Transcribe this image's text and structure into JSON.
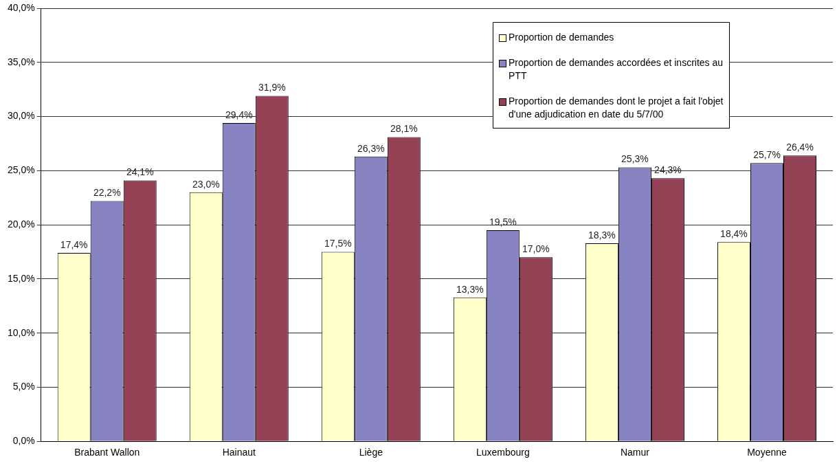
{
  "chart_data": {
    "type": "bar",
    "categories": [
      "Brabant Wallon",
      "Hainaut",
      "Liège",
      "Luxembourg",
      "Namur",
      "Moyenne"
    ],
    "series": [
      {
        "name": "Proportion de demandes",
        "color": "#ffffcc",
        "values": [
          17.4,
          23.0,
          17.5,
          13.3,
          18.3,
          18.4
        ],
        "value_labels": [
          "17,4%",
          "23,0%",
          "17,5%",
          "13,3%",
          "18,3%",
          "18,4%"
        ]
      },
      {
        "name": "Proportion de demandes accordées et inscrites au PTT",
        "color": "#8884c4",
        "values": [
          22.2,
          29.4,
          26.3,
          19.5,
          25.3,
          25.7
        ],
        "value_labels": [
          "22,2%",
          "29,4%",
          "26,3%",
          "19,5%",
          "25,3%",
          "25,7%"
        ]
      },
      {
        "name": "Proportion de demandes dont le projet a fait l'objet d'une adjudication en date du 5/7/00",
        "color": "#954256",
        "values": [
          24.1,
          31.9,
          28.1,
          17.0,
          24.3,
          26.4
        ],
        "value_labels": [
          "24,1%",
          "31,9%",
          "28,1%",
          "17,0%",
          "24,3%",
          "26,4%"
        ]
      }
    ],
    "ylim": [
      0,
      40
    ],
    "yticks": [
      {
        "value": 0,
        "label": "0,0%"
      },
      {
        "value": 5,
        "label": "5,0%"
      },
      {
        "value": 10,
        "label": "10,0%"
      },
      {
        "value": 15,
        "label": "15,0%"
      },
      {
        "value": 20,
        "label": "20,0%"
      },
      {
        "value": 25,
        "label": "25,0%"
      },
      {
        "value": 30,
        "label": "30,0%"
      },
      {
        "value": 35,
        "label": "35,0%"
      },
      {
        "value": 40,
        "label": "40,0%"
      }
    ],
    "grid": "y",
    "legend": "top right"
  }
}
